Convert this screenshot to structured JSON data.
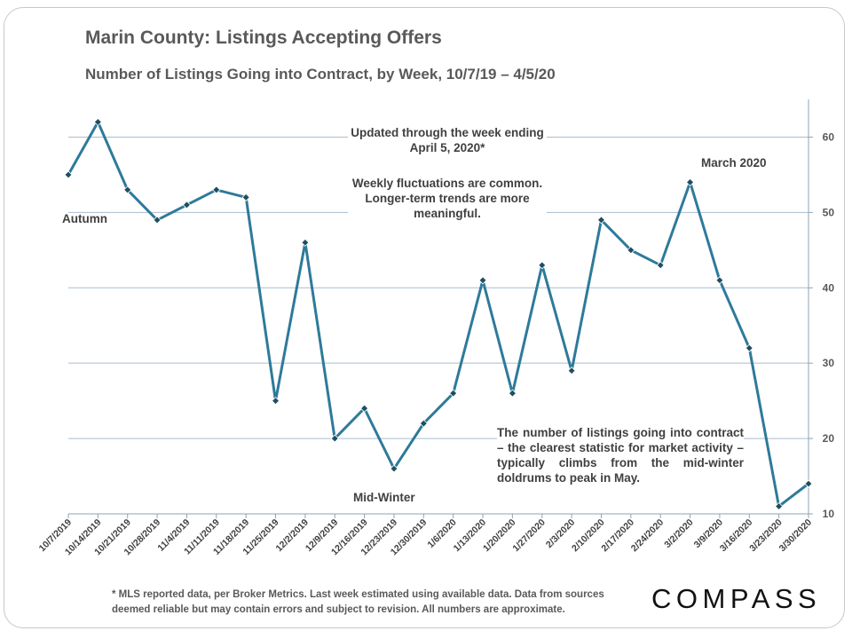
{
  "title": "Marin County: Listings Accepting Offers",
  "subtitle": "Number of Listings Going into Contract, by Week, 10/7/19 – 4/5/20",
  "annotations": {
    "updated": "Updated through the week ending April 5, 2020*",
    "fluctuations": "Weekly fluctuations are common. Longer-term trends are more meaningful.",
    "autumn": "Autumn",
    "march": "March 2020",
    "midwinter": "Mid-Winter",
    "note": "The number of listings going into contract – the clearest statistic for market activity – typically climbs from the mid-winter doldrums to peak in May."
  },
  "footnote": "* MLS reported data, per Broker Metrics. Last week estimated using available data. Data from sources deemed reliable but may contain errors and subject to revision. All numbers are approximate.",
  "logo": "COMPASS",
  "colors": {
    "line": "#2e7a9a",
    "marker": "#1f4e60",
    "grid": "#a9bdd0",
    "axis": "#8fa3b3"
  },
  "chart_data": {
    "type": "line",
    "categories": [
      "10/7/2019",
      "10/14/2019",
      "10/21/2019",
      "10/28/2019",
      "11/4/2019",
      "11/11/2019",
      "11/18/2019",
      "11/25/2019",
      "12/2/2019",
      "12/9/2019",
      "12/16/2019",
      "12/23/2019",
      "12/30/2019",
      "1/6/2020",
      "1/13/2020",
      "1/20/2020",
      "1/27/2020",
      "2/3/2020",
      "2/10/2020",
      "2/17/2020",
      "2/24/2020",
      "3/2/2020",
      "3/9/2020",
      "3/16/2020",
      "3/23/2020",
      "3/30/2020"
    ],
    "values": [
      55,
      62,
      53,
      49,
      51,
      53,
      52,
      25,
      46,
      20,
      24,
      16,
      22,
      26,
      41,
      26,
      43,
      29,
      49,
      45,
      43,
      54,
      41,
      32,
      11,
      14
    ],
    "ylim": [
      10,
      65
    ],
    "yticks": [
      "10",
      "20",
      "30",
      "40",
      "50",
      "60"
    ],
    "y_axis_side": "right",
    "grid": true,
    "xlabel": "",
    "ylabel": ""
  }
}
